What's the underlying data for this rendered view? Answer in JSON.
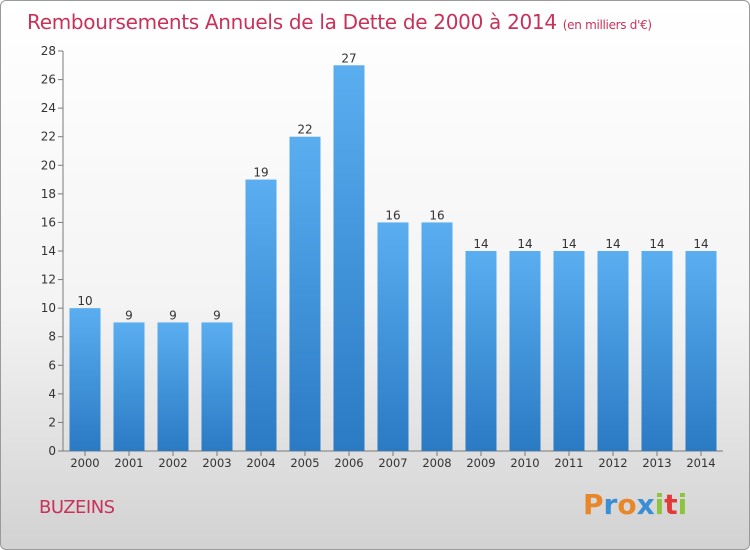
{
  "header": {
    "title": "Remboursements Annuels de la Dette de 2000 à 2014",
    "unit": "(en milliers d'€)"
  },
  "footer": {
    "place": "BUZEINS",
    "logo_letters": [
      "P",
      "r",
      "o",
      "x",
      "i",
      "t",
      "i"
    ],
    "logo_colors": [
      "#e8862a",
      "#3a8fd4",
      "#e8862a",
      "#3a8fd4",
      "#8cc43e",
      "#e23a3a",
      "#8cc43e"
    ]
  },
  "chart_data": {
    "type": "bar",
    "title": "Remboursements Annuels de la Dette de 2000 à 2014",
    "categories": [
      "2000",
      "2001",
      "2002",
      "2003",
      "2004",
      "2005",
      "2006",
      "2007",
      "2008",
      "2009",
      "2010",
      "2011",
      "2012",
      "2013",
      "2014"
    ],
    "values": [
      10,
      9,
      9,
      9,
      19,
      22,
      27,
      16,
      16,
      14,
      14,
      14,
      14,
      14,
      14
    ],
    "ylim": [
      0,
      28
    ],
    "yticks": [
      0,
      2,
      4,
      6,
      8,
      10,
      12,
      14,
      16,
      18,
      20,
      22,
      24,
      26,
      28
    ],
    "grid": false,
    "bar_color_top": "#5aaef0",
    "bar_color_bottom": "#2a7ac4"
  }
}
